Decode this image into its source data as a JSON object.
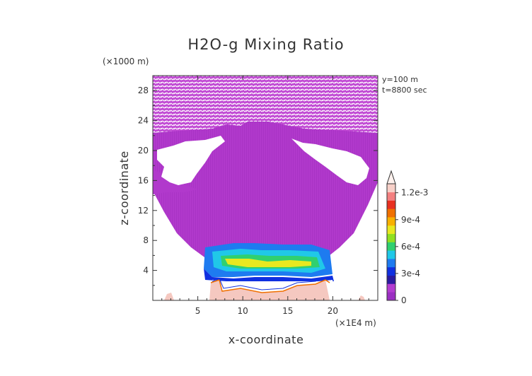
{
  "chart_data": {
    "type": "heatmap",
    "title": "H2O-g Mixing Ratio",
    "xlabel": "x-coordinate",
    "ylabel": "z-coordinate",
    "x_scale_label": "(×1E4 m)",
    "y_scale_label": "(×1000 m)",
    "annotations": [
      "y=100 m",
      "t=8800 sec"
    ],
    "xlim": [
      0,
      25
    ],
    "ylim": [
      0,
      30
    ],
    "x_ticks": [
      5,
      10,
      15,
      20
    ],
    "x_tick_labels": [
      "5",
      "10",
      "15",
      "20"
    ],
    "y_ticks": [
      4,
      8,
      12,
      16,
      20,
      24,
      28
    ],
    "y_tick_labels": [
      "4",
      "8",
      "12",
      "16",
      "20",
      "24",
      "28"
    ],
    "colorbar": {
      "min": 0,
      "max": 0.0013,
      "tick_values": [
        0,
        0.0003,
        0.0006,
        0.0009,
        0.0012
      ],
      "tick_labels": [
        "0",
        "3e-4",
        "6e-4",
        "9e-4",
        "1.2e-3"
      ],
      "colors": [
        "#9b2fc2",
        "#b33cd0",
        "#2a1aa0",
        "#1030e0",
        "#1e7bf0",
        "#20c8e8",
        "#30d070",
        "#90e020",
        "#e8e820",
        "#f8b000",
        "#f07000",
        "#e83020",
        "#f48080",
        "#f8d0c8"
      ]
    },
    "field_colors": {
      "background_moisture": "#b139cc",
      "upper_layer": "#c14ad4",
      "boundary_layer": "#f5c8c0",
      "cloud_gap": "#ffffff"
    }
  }
}
